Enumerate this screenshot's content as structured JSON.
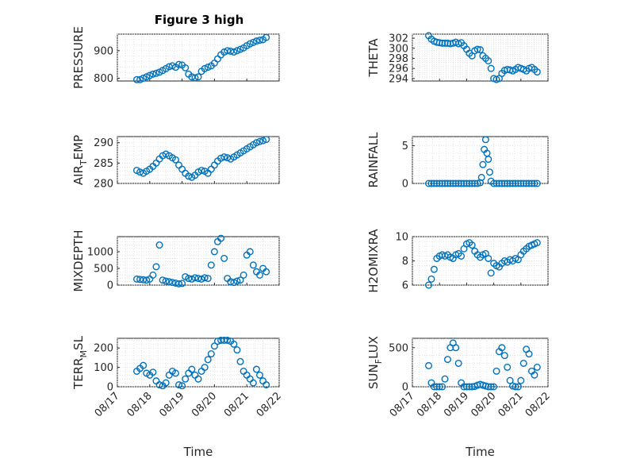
{
  "chart_data": {
    "type": "scatter",
    "title": "Figure 3 high",
    "marker_color": "#0072BD",
    "grid": "on (dotted)",
    "x_tick_labels": [
      "08/17",
      "08/18",
      "08/19",
      "08/20",
      "08/21",
      "08/22"
    ],
    "xlabel": "Time",
    "subplots": [
      {
        "ylabel": "PRESSURE",
        "ylim": [
          790,
          960
        ],
        "yticks": [
          800,
          900
        ],
        "ytick_labels": [
          "800",
          "900"
        ],
        "x": [
          17.6,
          17.7,
          17.8,
          17.9,
          18.0,
          18.1,
          18.2,
          18.3,
          18.4,
          18.5,
          18.6,
          18.7,
          18.8,
          18.9,
          19.0,
          19.1,
          19.2,
          19.3,
          19.4,
          19.5,
          19.6,
          19.7,
          19.8,
          19.9,
          20.0,
          20.1,
          20.2,
          20.3,
          20.4,
          20.5,
          20.6,
          20.7,
          20.8,
          20.9,
          21.0,
          21.1,
          21.2,
          21.3,
          21.4,
          21.5,
          21.6
        ],
        "y": [
          795,
          795,
          800,
          805,
          810,
          815,
          818,
          822,
          828,
          835,
          842,
          845,
          840,
          850,
          848,
          838,
          815,
          805,
          802,
          805,
          825,
          835,
          840,
          845,
          855,
          870,
          885,
          895,
          900,
          898,
          895,
          900,
          905,
          910,
          918,
          925,
          930,
          935,
          938,
          940,
          948
        ]
      },
      {
        "ylabel": "THETA",
        "ylim": [
          293.5,
          302.8
        ],
        "yticks": [
          294,
          296,
          298,
          300,
          302
        ],
        "ytick_labels": [
          "294",
          "296",
          "298",
          "300",
          "302"
        ],
        "x": [
          17.6,
          17.7,
          17.8,
          17.9,
          18.0,
          18.1,
          18.2,
          18.3,
          18.4,
          18.5,
          18.6,
          18.7,
          18.8,
          18.9,
          19.0,
          19.1,
          19.2,
          19.3,
          19.4,
          19.5,
          19.6,
          19.7,
          19.8,
          19.9,
          20.0,
          20.1,
          20.2,
          20.3,
          20.4,
          20.5,
          20.6,
          20.7,
          20.8,
          20.9,
          21.0,
          21.1,
          21.2,
          21.3,
          21.4,
          21.5,
          21.6
        ],
        "y": [
          302.5,
          301.8,
          301.4,
          301.2,
          301.1,
          301.0,
          301.0,
          301.0,
          300.9,
          301.0,
          301.2,
          300.9,
          301.1,
          300.5,
          299.8,
          299.0,
          298.5,
          299.5,
          299.8,
          299.7,
          298.5,
          298.0,
          297.5,
          296.0,
          294.0,
          293.8,
          294.0,
          295.0,
          295.6,
          295.8,
          295.7,
          295.5,
          295.8,
          296.2,
          296.0,
          295.8,
          295.5,
          296.0,
          296.2,
          295.8,
          295.3
        ]
      },
      {
        "ylabel": "AIR_TEMP",
        "ylim": [
          280,
          291.5
        ],
        "yticks": [
          280,
          285,
          290
        ],
        "ytick_labels": [
          "280",
          "285",
          "290"
        ],
        "x": [
          17.6,
          17.7,
          17.8,
          17.9,
          18.0,
          18.1,
          18.2,
          18.3,
          18.4,
          18.5,
          18.6,
          18.7,
          18.8,
          18.9,
          19.0,
          19.1,
          19.2,
          19.3,
          19.4,
          19.5,
          19.6,
          19.7,
          19.8,
          19.9,
          20.0,
          20.1,
          20.2,
          20.3,
          20.4,
          20.5,
          20.6,
          20.7,
          20.8,
          20.9,
          21.0,
          21.1,
          21.2,
          21.3,
          21.4,
          21.5,
          21.6
        ],
        "y": [
          283.2,
          282.8,
          282.5,
          283.0,
          283.5,
          284.2,
          285.0,
          286.0,
          286.8,
          287.2,
          286.8,
          286.3,
          285.8,
          284.5,
          283.5,
          282.5,
          281.8,
          281.5,
          282.0,
          282.8,
          283.2,
          283.0,
          282.5,
          283.5,
          284.5,
          285.5,
          286.2,
          286.5,
          286.3,
          286.0,
          286.5,
          287.0,
          287.5,
          288.0,
          288.5,
          289.0,
          289.5,
          290.0,
          290.3,
          290.5,
          290.8
        ]
      },
      {
        "ylabel": "RAINFALL",
        "ylim": [
          0,
          6.2
        ],
        "yticks": [
          0,
          5
        ],
        "ytick_labels": [
          "0",
          "5"
        ],
        "x": [
          17.6,
          17.7,
          17.8,
          17.9,
          18.0,
          18.1,
          18.2,
          18.3,
          18.4,
          18.5,
          18.6,
          18.7,
          18.8,
          18.9,
          19.0,
          19.1,
          19.2,
          19.3,
          19.4,
          19.5,
          19.55,
          19.6,
          19.65,
          19.7,
          19.75,
          19.8,
          19.85,
          19.9,
          20.0,
          20.1,
          20.2,
          20.3,
          20.4,
          20.5,
          20.6,
          20.7,
          20.8,
          20.9,
          21.0,
          21.1,
          21.2,
          21.3,
          21.4,
          21.5,
          21.6
        ],
        "y": [
          0,
          0,
          0,
          0,
          0,
          0,
          0,
          0,
          0,
          0,
          0,
          0,
          0,
          0,
          0,
          0,
          0,
          0,
          0,
          0.1,
          0.8,
          2.5,
          4.5,
          5.8,
          4.0,
          3.2,
          1.5,
          0.3,
          0,
          0,
          0,
          0,
          0,
          0,
          0,
          0,
          0,
          0,
          0,
          0,
          0,
          0,
          0,
          0,
          0
        ]
      },
      {
        "ylabel": "MIXDEPTH",
        "ylim": [
          0,
          1450
        ],
        "yticks": [
          0,
          500,
          1000
        ],
        "ytick_labels": [
          "0",
          "500",
          "1000"
        ],
        "x": [
          17.6,
          17.7,
          17.8,
          17.9,
          18.0,
          18.1,
          18.2,
          18.3,
          18.4,
          18.5,
          18.6,
          18.7,
          18.8,
          18.9,
          19.0,
          19.1,
          19.2,
          19.3,
          19.4,
          19.5,
          19.6,
          19.7,
          19.8,
          19.9,
          20.0,
          20.1,
          20.2,
          20.3,
          20.4,
          20.5,
          20.6,
          20.7,
          20.8,
          20.9,
          21.0,
          21.1,
          21.2,
          21.3,
          21.4,
          21.5,
          21.6
        ],
        "y": [
          180,
          170,
          160,
          150,
          180,
          300,
          550,
          1200,
          150,
          120,
          100,
          80,
          60,
          40,
          50,
          250,
          200,
          180,
          220,
          200,
          180,
          220,
          200,
          600,
          1000,
          1300,
          1400,
          800,
          200,
          100,
          80,
          120,
          150,
          300,
          900,
          1000,
          600,
          400,
          300,
          500,
          400
        ]
      },
      {
        "ylabel": "H2OMIXRA",
        "ylim": [
          6,
          10
        ],
        "yticks": [
          6,
          8,
          10
        ],
        "ytick_labels": [
          "6",
          "8",
          "10"
        ],
        "x": [
          17.6,
          17.7,
          17.8,
          17.9,
          18.0,
          18.1,
          18.2,
          18.3,
          18.4,
          18.5,
          18.6,
          18.7,
          18.8,
          18.9,
          19.0,
          19.1,
          19.2,
          19.3,
          19.4,
          19.5,
          19.6,
          19.7,
          19.8,
          19.9,
          20.0,
          20.1,
          20.2,
          20.3,
          20.4,
          20.5,
          20.6,
          20.7,
          20.8,
          20.9,
          21.0,
          21.1,
          21.2,
          21.3,
          21.4,
          21.5,
          21.6
        ],
        "y": [
          6.0,
          6.5,
          7.3,
          8.2,
          8.4,
          8.5,
          8.4,
          8.5,
          8.3,
          8.2,
          8.5,
          8.6,
          8.4,
          9.0,
          9.4,
          9.5,
          9.3,
          8.8,
          8.5,
          8.3,
          8.5,
          8.6,
          8.2,
          7.0,
          7.8,
          7.6,
          7.5,
          7.8,
          8.0,
          7.9,
          8.1,
          8.0,
          8.2,
          8.1,
          8.5,
          8.8,
          9.0,
          9.2,
          9.3,
          9.4,
          9.5
        ]
      },
      {
        "ylabel": "TERR_MSL",
        "ylim": [
          0,
          250
        ],
        "yticks": [
          0,
          100,
          200
        ],
        "ytick_labels": [
          "0",
          "100",
          "200"
        ],
        "x": [
          17.6,
          17.7,
          17.8,
          17.9,
          18.0,
          18.1,
          18.2,
          18.3,
          18.4,
          18.5,
          18.6,
          18.7,
          18.8,
          18.9,
          19.0,
          19.1,
          19.2,
          19.3,
          19.4,
          19.5,
          19.6,
          19.7,
          19.8,
          19.9,
          20.0,
          20.1,
          20.2,
          20.3,
          20.4,
          20.5,
          20.6,
          20.7,
          20.8,
          20.9,
          21.0,
          21.1,
          21.2,
          21.3,
          21.4,
          21.5,
          21.6
        ],
        "y": [
          80,
          95,
          110,
          70,
          60,
          75,
          30,
          10,
          5,
          20,
          60,
          80,
          70,
          10,
          5,
          40,
          70,
          90,
          60,
          40,
          80,
          100,
          140,
          170,
          210,
          235,
          240,
          240,
          240,
          235,
          220,
          190,
          130,
          80,
          60,
          40,
          20,
          90,
          60,
          30,
          10
        ]
      },
      {
        "ylabel": "SUN_FLUX",
        "ylim": [
          0,
          620
        ],
        "yticks": [
          0,
          500
        ],
        "ytick_labels": [
          "0",
          "500"
        ],
        "x": [
          17.6,
          17.7,
          17.8,
          17.9,
          18.0,
          18.1,
          18.2,
          18.3,
          18.4,
          18.5,
          18.6,
          18.7,
          18.8,
          18.9,
          19.0,
          19.1,
          19.2,
          19.3,
          19.4,
          19.5,
          19.6,
          19.7,
          19.8,
          19.9,
          20.0,
          20.1,
          20.2,
          20.3,
          20.4,
          20.5,
          20.6,
          20.7,
          20.8,
          20.9,
          21.0,
          21.1,
          21.2,
          21.3,
          21.4,
          21.5,
          21.6
        ],
        "y": [
          270,
          50,
          0,
          0,
          0,
          0,
          100,
          350,
          500,
          560,
          500,
          300,
          50,
          0,
          0,
          0,
          0,
          5,
          20,
          30,
          20,
          10,
          0,
          0,
          0,
          200,
          450,
          500,
          400,
          250,
          80,
          10,
          0,
          0,
          80,
          300,
          480,
          420,
          200,
          150,
          250
        ]
      }
    ]
  }
}
